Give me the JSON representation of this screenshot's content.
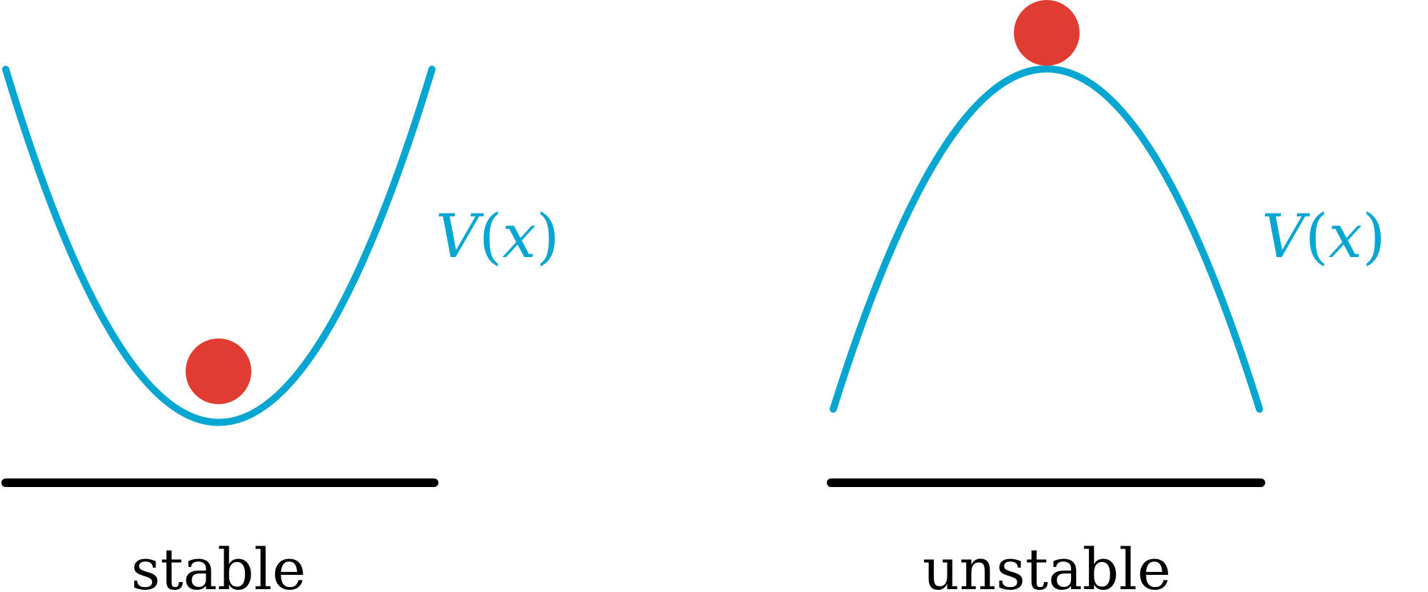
{
  "panels": [
    {
      "caption": "stable",
      "potential_label": {
        "func": "V",
        "open": "(",
        "var": "x",
        "close": ")"
      }
    },
    {
      "caption": "unstable",
      "potential_label": {
        "func": "V",
        "open": "(",
        "var": "x",
        "close": ")"
      }
    }
  ],
  "colors": {
    "curve": "#06a6d3",
    "ball": "#e03c31",
    "baseline": "#000000",
    "label": "#06a6d3",
    "caption": "#000000"
  }
}
